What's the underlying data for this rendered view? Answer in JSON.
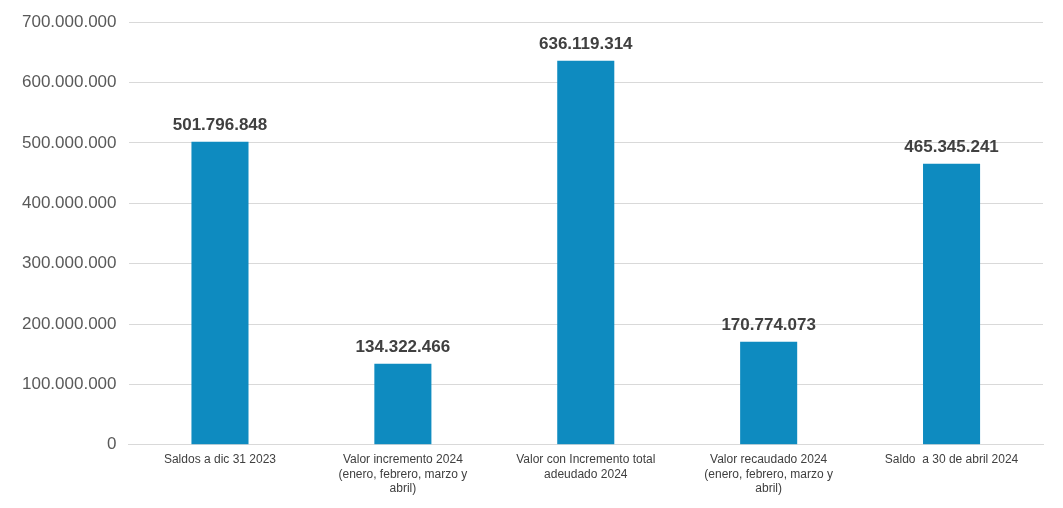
{
  "chart_data": {
    "type": "bar",
    "categories": [
      "Saldos a dic 31 2023",
      "Valor incremento 2024 (enero, febrero, marzo y abril)",
      "Valor con Incremento total adeudado 2024",
      "Valor recaudado 2024 (enero, febrero, marzo y abril)",
      "Saldo  a 30 de abril 2024"
    ],
    "values": [
      501796848,
      134322466,
      636119314,
      170774073,
      465345241
    ],
    "value_labels": [
      "501.796.848",
      "134.322.466",
      "636.119.314",
      "170.774.073",
      "465.345.241"
    ],
    "color": "#0e8bc0",
    "ylim": [
      0,
      700000000
    ],
    "yticks": [
      {
        "value": 0,
        "label": "0"
      },
      {
        "value": 100000000,
        "label": "100.000.000"
      },
      {
        "value": 200000000,
        "label": "200.000.000"
      },
      {
        "value": 300000000,
        "label": "300.000.000"
      },
      {
        "value": 400000000,
        "label": "400.000.000"
      },
      {
        "value": 500000000,
        "label": "500.000.000"
      },
      {
        "value": 600000000,
        "label": "600.000.000"
      },
      {
        "value": 700000000,
        "label": "700.000.000"
      }
    ],
    "grid": "y",
    "legend": false
  }
}
